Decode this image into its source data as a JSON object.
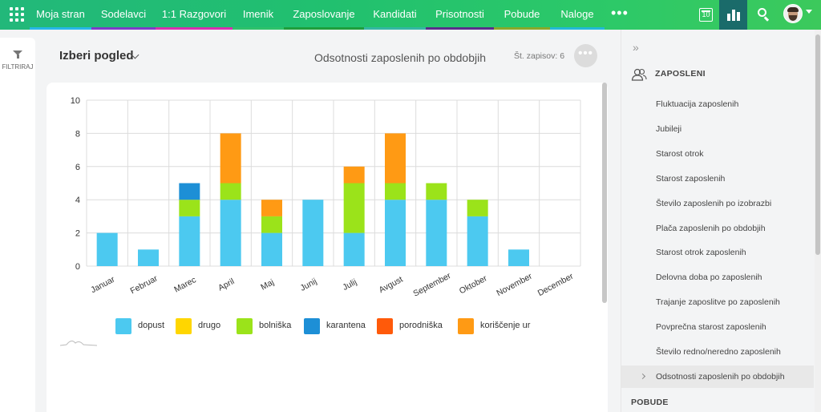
{
  "nav": {
    "items": [
      {
        "label": "Moja stran",
        "color": "#26b6e8"
      },
      {
        "label": "Sodelavci",
        "color": "#7d3cc8"
      },
      {
        "label": "1:1 Razgovori",
        "color": "#d62fb0"
      },
      {
        "label": "Imenik",
        "color": "#2ec16a"
      },
      {
        "label": "Zaposlovanje",
        "color": "#1f9e3c"
      },
      {
        "label": "Kandidati",
        "color": "#34b6a4"
      },
      {
        "label": "Prisotnosti",
        "color": "#5a2e8c"
      },
      {
        "label": "Pobude",
        "color": "#8aa82a"
      },
      {
        "label": "Naloge",
        "color": "#22b8d8"
      }
    ],
    "more": "•••",
    "calendar_day": "10"
  },
  "filter": {
    "label": "FILTRIRAJ"
  },
  "header": {
    "view_label": "Izberi pogled",
    "title": "Odsotnosti zaposlenih po obdobjih",
    "records": "Št. zapisov: 6",
    "more": "•••"
  },
  "chart_data": {
    "type": "bar",
    "stacked": true,
    "categories": [
      "Januar",
      "Februar",
      "Marec",
      "April",
      "Maj",
      "Junij",
      "Julij",
      "Avgust",
      "September",
      "Oktober",
      "November",
      "December"
    ],
    "series": [
      {
        "name": "dopust",
        "color": "#4cc9f0",
        "values": [
          2,
          1,
          3,
          4,
          2,
          4,
          2,
          4,
          4,
          3,
          1,
          0
        ]
      },
      {
        "name": "drugo",
        "color": "#ffd600",
        "values": [
          0,
          0,
          0,
          0,
          0,
          0,
          0,
          0,
          0,
          0,
          0,
          0
        ]
      },
      {
        "name": "bolniška",
        "color": "#9be31a",
        "values": [
          0,
          0,
          1,
          1,
          1,
          0,
          3,
          1,
          1,
          1,
          0,
          0
        ]
      },
      {
        "name": "karantena",
        "color": "#1d8fd6",
        "values": [
          0,
          0,
          1,
          0,
          0,
          0,
          0,
          0,
          0,
          0,
          0,
          0
        ]
      },
      {
        "name": "porodniška",
        "color": "#ff5a0a",
        "values": [
          0,
          0,
          0,
          0,
          0,
          0,
          0,
          0,
          0,
          0,
          0,
          0
        ]
      },
      {
        "name": "koriščenje ur",
        "color": "#ff9a14",
        "values": [
          0,
          0,
          0,
          3,
          1,
          0,
          1,
          3,
          0,
          0,
          0,
          0
        ]
      }
    ],
    "yticks": [
      0,
      2,
      4,
      6,
      8,
      10
    ],
    "ylim": [
      0,
      10
    ],
    "grid": true,
    "legend": "bottom"
  },
  "right_panel": {
    "section_title": "ZAPOSLENI",
    "items": [
      "Fluktuacija zaposlenih",
      "Jubileji",
      "Starost otrok",
      "Starost zaposlenih",
      "Število zaposlenih po izobrazbi",
      "Plača zaposlenih po obdobjih",
      "Starost otrok zaposlenih",
      "Delovna doba po zaposlenih",
      "Trajanje zaposlitve po zaposlenih",
      "Povprečna starost zaposlenih",
      "Število redno/neredno zaposlenih",
      "Odsotnosti zaposlenih po obdobjih"
    ],
    "active_index": 11,
    "next_section": "POBUDE",
    "collapse": "»"
  }
}
